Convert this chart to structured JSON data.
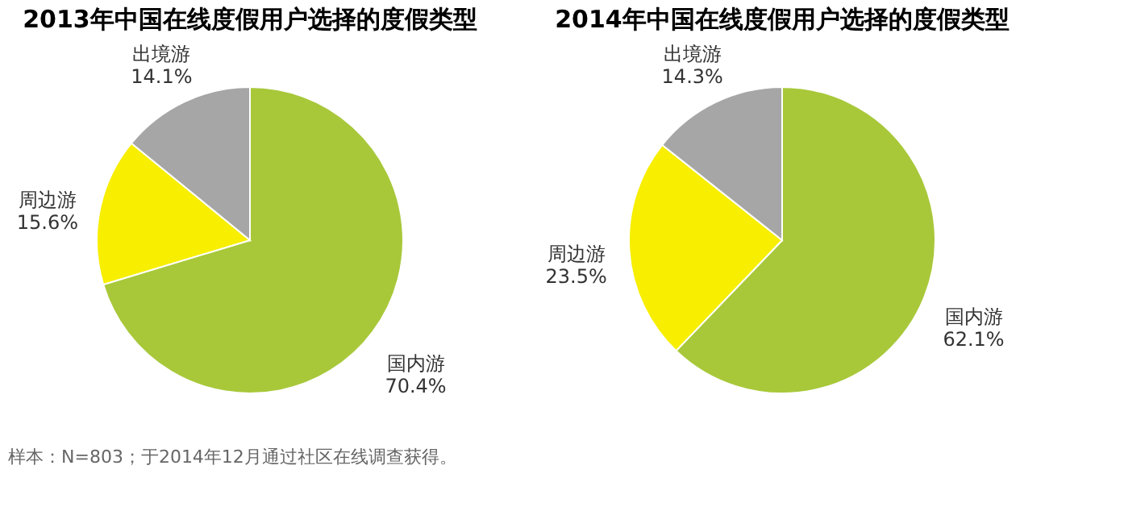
{
  "chart_data": [
    {
      "type": "pie",
      "title": "2013年中国在线度假用户选择的度假类型",
      "categories": [
        "国内游",
        "周边游",
        "出境游"
      ],
      "values": [
        70.4,
        15.6,
        14.1
      ],
      "value_labels": [
        "70.4%",
        "15.6%",
        "14.1%"
      ],
      "colors": [
        "#a8c83a",
        "#f7ee00",
        "#a6a6a6"
      ],
      "legend": false,
      "annotations": [
        "样本：N=803；于2014年12月通过社区在线调查获得。"
      ]
    },
    {
      "type": "pie",
      "title": "2014年中国在线度假用户选择的度假类型",
      "categories": [
        "国内游",
        "周边游",
        "出境游"
      ],
      "values": [
        62.1,
        23.5,
        14.3
      ],
      "value_labels": [
        "62.1%",
        "23.5%",
        "14.3%"
      ],
      "colors": [
        "#a8c83a",
        "#f7ee00",
        "#a6a6a6"
      ],
      "legend": false
    }
  ]
}
